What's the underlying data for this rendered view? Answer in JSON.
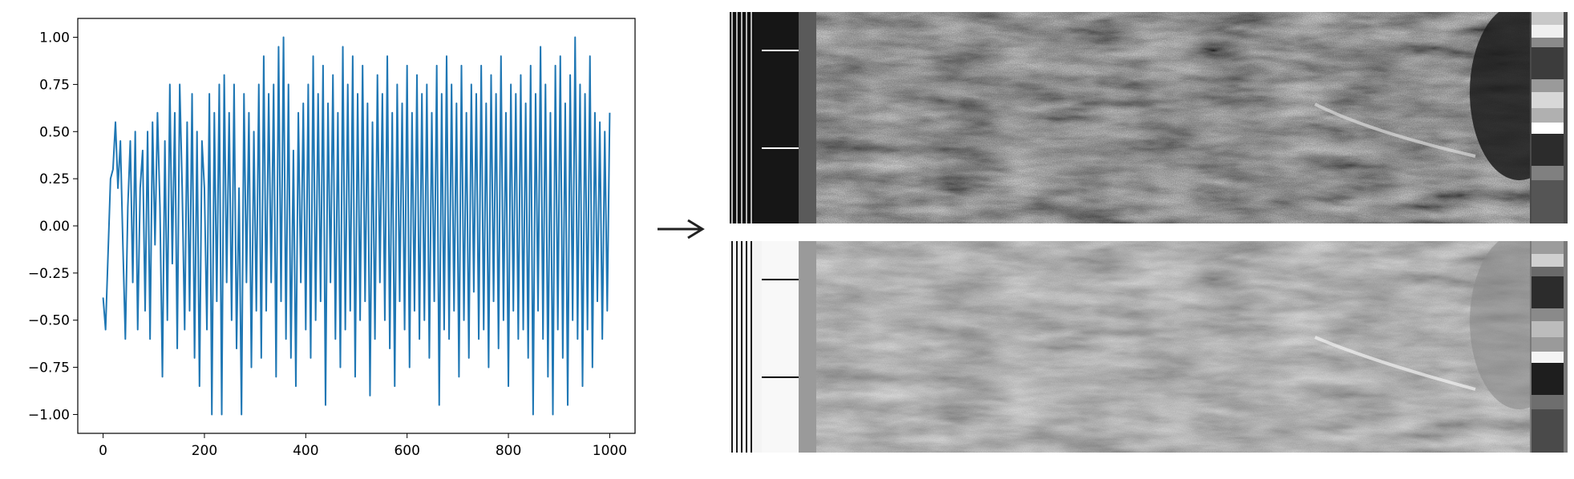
{
  "chart_data": {
    "type": "line",
    "title": "",
    "xlabel": "",
    "ylabel": "",
    "xlim": [
      -50,
      1050
    ],
    "ylim": [
      -1.1,
      1.1
    ],
    "x_ticks": [
      0,
      200,
      400,
      600,
      800,
      1000
    ],
    "x_tick_labels": [
      "0",
      "200",
      "400",
      "600",
      "800",
      "1000"
    ],
    "y_ticks": [
      1.0,
      0.75,
      0.5,
      0.25,
      0.0,
      -0.25,
      -0.5,
      -0.75,
      -1.0
    ],
    "y_tick_labels": [
      "1.00",
      "0.75",
      "0.50",
      "0.25",
      "0.00",
      "−0.25",
      "−0.50",
      "−0.75",
      "−1.00"
    ],
    "grid": false,
    "series": [
      {
        "name": "",
        "color": "#1f77b4",
        "x_start": 0,
        "x_end": 1000,
        "description_sample_count": 1000,
        "values": [
          -0.38,
          -0.55,
          -0.15,
          0.25,
          0.3,
          0.55,
          0.2,
          0.45,
          -0.1,
          -0.6,
          0.1,
          0.45,
          -0.3,
          0.5,
          -0.55,
          0.2,
          0.4,
          -0.45,
          0.5,
          -0.6,
          0.55,
          -0.1,
          0.6,
          0.1,
          -0.8,
          0.45,
          -0.5,
          0.75,
          -0.2,
          0.6,
          -0.65,
          0.75,
          0.2,
          -0.55,
          0.55,
          -0.45,
          0.7,
          -0.7,
          0.5,
          -0.85,
          0.45,
          0.2,
          -0.55,
          0.7,
          -1.0,
          0.6,
          -0.4,
          0.75,
          -1.0,
          0.8,
          -0.3,
          0.6,
          -0.5,
          0.75,
          -0.65,
          0.2,
          -1.0,
          0.7,
          -0.3,
          0.6,
          -0.75,
          0.5,
          -0.45,
          0.75,
          -0.7,
          0.9,
          -0.45,
          0.7,
          -0.3,
          0.75,
          -0.8,
          0.95,
          -0.4,
          1.0,
          -0.6,
          0.75,
          -0.7,
          0.4,
          -0.85,
          0.6,
          -0.3,
          0.65,
          -0.55,
          0.75,
          -0.7,
          0.9,
          -0.5,
          0.7,
          -0.4,
          0.85,
          -0.95,
          0.65,
          -0.3,
          0.8,
          -0.6,
          0.6,
          -0.75,
          0.95,
          -0.55,
          0.75,
          -0.45,
          0.9,
          -0.8,
          0.7,
          -0.5,
          0.85,
          -0.4,
          0.65,
          -0.9,
          0.55,
          -0.6,
          0.8,
          -0.3,
          0.7,
          -0.5,
          0.9,
          -0.65,
          0.6,
          -0.85,
          0.75,
          -0.4,
          0.65,
          -0.55,
          0.85,
          -0.75,
          0.6,
          -0.45,
          0.8,
          -0.6,
          0.7,
          -0.5,
          0.75,
          -0.7,
          0.6,
          -0.4,
          0.85,
          -0.95,
          0.7,
          -0.55,
          0.9,
          -0.6,
          0.75,
          -0.45,
          0.65,
          -0.8,
          0.85,
          -0.5,
          0.6,
          -0.7,
          0.75,
          -0.35,
          0.7,
          -0.6,
          0.85,
          -0.55,
          0.65,
          -0.75,
          0.8,
          -0.4,
          0.7,
          -0.65,
          0.9,
          -0.5,
          0.6,
          -0.85,
          0.75,
          -0.45,
          0.7,
          -0.6,
          0.8,
          -0.55,
          0.65,
          -0.7,
          0.85,
          -1.0,
          0.7,
          -0.45,
          0.95,
          -0.6,
          0.75,
          -0.8,
          0.6,
          -1.0,
          0.85,
          -0.55,
          0.9,
          -0.7,
          0.65,
          -0.95,
          0.8,
          -0.5,
          1.0,
          -0.6,
          0.75,
          -0.85,
          0.7,
          -0.55,
          0.9,
          -0.75,
          0.6,
          -0.4,
          0.55,
          -0.6,
          0.5,
          -0.45,
          0.6
        ]
      }
    ]
  },
  "arrow": {
    "icon": "right-arrow-icon",
    "color": "#222222"
  },
  "images": [
    {
      "icon": "satellite-image-raw-strip-icon",
      "tone": "dark"
    },
    {
      "icon": "satellite-image-processed-strip-icon",
      "tone": "light"
    }
  ]
}
